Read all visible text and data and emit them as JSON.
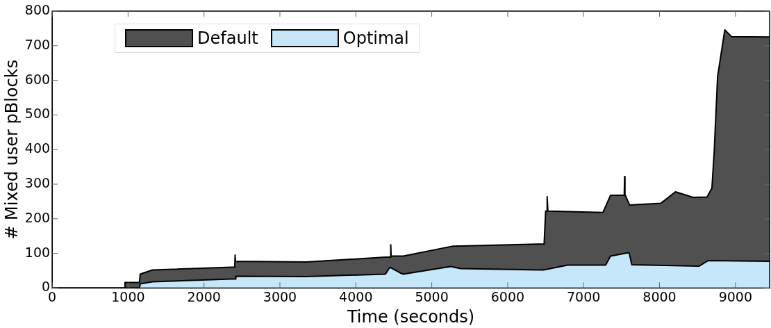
{
  "chart_data": {
    "type": "area",
    "xlabel": "Time (seconds)",
    "ylabel": "# Mixed user pBlocks",
    "xlim": [
      0,
      9450
    ],
    "xticks": [
      0,
      1000,
      2000,
      3000,
      4000,
      5000,
      6000,
      7000,
      8000,
      9000
    ],
    "ylim": [
      0,
      800
    ],
    "yticks": [
      0,
      100,
      200,
      300,
      400,
      500,
      600,
      700,
      800
    ],
    "grid": false,
    "legend": "top left",
    "marker": "none",
    "line_style": "solid",
    "series": [
      {
        "name": "Default",
        "color": "#505050",
        "x": [
          0,
          955,
          960,
          1150,
          1160,
          1320,
          2360,
          2405,
          2410,
          2415,
          2420,
          3345,
          4390,
          4455,
          4460,
          4465,
          4625,
          5280,
          6405,
          6480,
          6500,
          6515,
          6520,
          6530,
          7255,
          7355,
          7535,
          7540,
          7545,
          7605,
          8020,
          8210,
          8440,
          8625,
          8690,
          8720,
          8765,
          8860,
          8950,
          9450
        ],
        "values": [
          0,
          0,
          16,
          16,
          40,
          52,
          60,
          60,
          95,
          77,
          77,
          75,
          89,
          89,
          125,
          92,
          92,
          121,
          127,
          127,
          222,
          222,
          264,
          222,
          218,
          268,
          268,
          322,
          270,
          240,
          245,
          278,
          262,
          263,
          288,
          393,
          611,
          746,
          726,
          725
        ]
      },
      {
        "name": "Optimal",
        "color": "#c6e6fa",
        "x": [
          0,
          1150,
          1160,
          1320,
          2360,
          2415,
          2420,
          3345,
          4390,
          4450,
          4580,
          4625,
          5250,
          5380,
          6470,
          6790,
          7290,
          7355,
          7600,
          7635,
          8520,
          8640,
          9450
        ],
        "values": [
          0,
          0,
          12,
          18,
          26,
          26,
          34,
          33,
          40,
          60,
          44,
          40,
          62,
          56,
          52,
          66,
          66,
          92,
          102,
          67,
          63,
          79,
          77
        ]
      }
    ]
  }
}
